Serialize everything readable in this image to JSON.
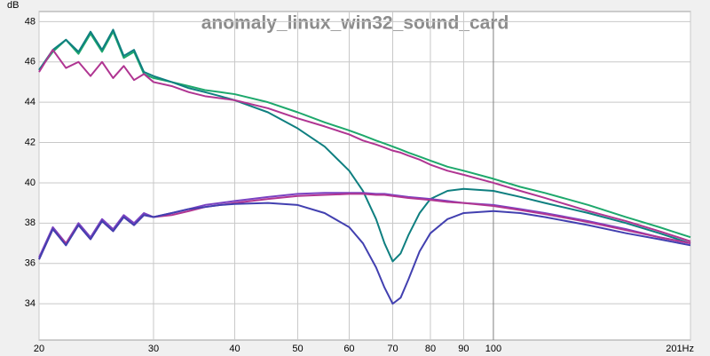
{
  "chart_data": {
    "type": "line",
    "title": "anomaly_linux_win32_sound_card",
    "y_label": "dB",
    "log_x": true,
    "grid": true,
    "xlim": [
      20,
      201
    ],
    "ylim": [
      32.2,
      48.5
    ],
    "xticks": [
      20,
      30,
      40,
      50,
      60,
      70,
      80,
      90,
      100,
      {
        "value": 201,
        "label": "201Hz"
      }
    ],
    "yticks": [
      34,
      36,
      38,
      40,
      42,
      44,
      46,
      48
    ],
    "x": [
      20,
      21,
      22,
      23,
      24,
      25,
      26,
      27,
      28,
      29,
      30,
      32,
      34,
      36,
      38,
      40,
      45,
      50,
      55,
      60,
      63,
      66,
      68,
      70,
      72,
      74,
      77,
      80,
      85,
      90,
      100,
      110,
      120,
      140,
      160,
      180,
      201
    ],
    "series": [
      {
        "color": "#1ea86c",
        "values": [
          45.6,
          46.5,
          47.1,
          46.4,
          47.4,
          46.5,
          47.5,
          46.2,
          46.5,
          45.4,
          45.2,
          45.0,
          44.8,
          44.6,
          44.5,
          44.4,
          44.0,
          43.5,
          43.0,
          42.6,
          42.35,
          42.1,
          41.95,
          41.8,
          41.65,
          41.5,
          41.3,
          41.1,
          40.8,
          40.6,
          40.2,
          39.8,
          39.5,
          38.9,
          38.3,
          37.8,
          37.3
        ]
      },
      {
        "color": "#0f7f80",
        "values": [
          45.6,
          46.6,
          47.1,
          46.5,
          47.5,
          46.6,
          47.6,
          46.3,
          46.6,
          45.5,
          45.3,
          45.0,
          44.7,
          44.5,
          44.3,
          44.1,
          43.5,
          42.7,
          41.8,
          40.6,
          39.6,
          38.2,
          37.0,
          36.1,
          36.5,
          37.4,
          38.5,
          39.2,
          39.6,
          39.7,
          39.6,
          39.3,
          39.0,
          38.5,
          38.0,
          37.5,
          37.0
        ]
      },
      {
        "color": "#b03592",
        "values": [
          45.5,
          46.6,
          45.7,
          46.0,
          45.3,
          46.0,
          45.2,
          45.8,
          45.1,
          45.4,
          45.0,
          44.8,
          44.5,
          44.3,
          44.2,
          44.1,
          43.7,
          43.2,
          42.8,
          42.4,
          42.1,
          41.9,
          41.75,
          41.6,
          41.5,
          41.35,
          41.15,
          40.9,
          40.6,
          40.4,
          40.0,
          39.6,
          39.25,
          38.6,
          38.1,
          37.6,
          37.1
        ]
      },
      {
        "color": "#7a42c2",
        "values": [
          36.3,
          37.8,
          37.0,
          38.0,
          37.3,
          38.2,
          37.7,
          38.4,
          38.0,
          38.5,
          38.3,
          38.5,
          38.7,
          38.9,
          39.0,
          39.1,
          39.3,
          39.45,
          39.5,
          39.5,
          39.5,
          39.45,
          39.45,
          39.4,
          39.35,
          39.3,
          39.25,
          39.2,
          39.1,
          39.0,
          38.9,
          38.7,
          38.5,
          38.1,
          37.7,
          37.3,
          37.0
        ]
      },
      {
        "color": "#b03592",
        "values": [
          36.2,
          37.7,
          37.0,
          37.9,
          37.2,
          38.1,
          37.6,
          38.3,
          37.9,
          38.4,
          38.3,
          38.4,
          38.6,
          38.8,
          38.9,
          39.0,
          39.2,
          39.35,
          39.4,
          39.45,
          39.45,
          39.4,
          39.4,
          39.35,
          39.3,
          39.25,
          39.2,
          39.15,
          39.05,
          39.0,
          38.85,
          38.65,
          38.45,
          38.05,
          37.65,
          37.3,
          37.0
        ]
      },
      {
        "color": "#4240b0",
        "values": [
          36.2,
          37.7,
          36.9,
          37.9,
          37.2,
          38.1,
          37.6,
          38.3,
          37.9,
          38.4,
          38.3,
          38.5,
          38.7,
          38.8,
          38.9,
          38.95,
          39.0,
          38.9,
          38.5,
          37.8,
          37.0,
          35.8,
          34.8,
          34.0,
          34.3,
          35.2,
          36.6,
          37.5,
          38.2,
          38.5,
          38.6,
          38.5,
          38.3,
          37.9,
          37.5,
          37.2,
          36.9
        ]
      }
    ]
  }
}
